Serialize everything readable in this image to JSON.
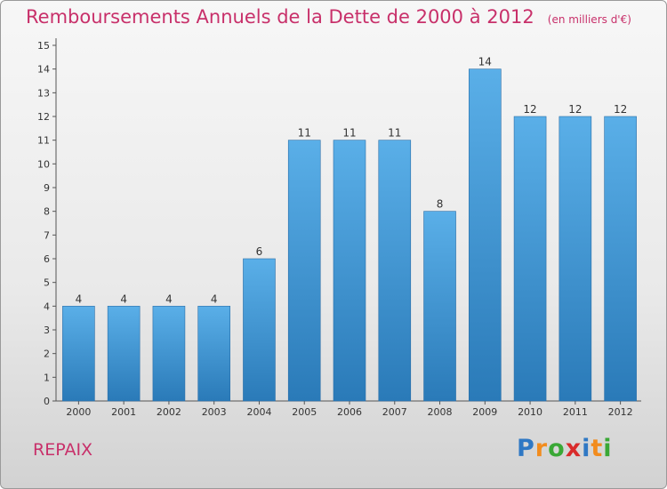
{
  "title": "Remboursements Annuels de la Dette de 2000 à 2012",
  "unit_note": "(en milliers d'€)",
  "commune": "REPAIX",
  "logo": {
    "letters": [
      "P",
      "r",
      "o",
      "x",
      "i",
      "t",
      "i"
    ],
    "colors": [
      "#2f78c4",
      "#f28c1e",
      "#3aa836",
      "#d92b2b",
      "#2f78c4",
      "#f28c1e",
      "#3aa836"
    ]
  },
  "colors": {
    "bar_top": "#5aafe8",
    "bar_bottom": "#2a7ab8",
    "accent": "#c8306a"
  },
  "chart_data": {
    "type": "bar",
    "categories": [
      "2000",
      "2001",
      "2002",
      "2003",
      "2004",
      "2005",
      "2006",
      "2007",
      "2008",
      "2009",
      "2010",
      "2011",
      "2012"
    ],
    "values": [
      4,
      4,
      4,
      4,
      6,
      11,
      11,
      11,
      8,
      14,
      12,
      12,
      12
    ],
    "value_labels": [
      "4",
      "4",
      "4",
      "4",
      "6",
      "11",
      "11",
      "11",
      "8",
      "14",
      "12",
      "12",
      "12"
    ],
    "ylim": [
      0,
      15
    ],
    "yticks": [
      "0",
      "1",
      "2",
      "3",
      "4",
      "5",
      "6",
      "7",
      "8",
      "9",
      "10",
      "11",
      "12",
      "13",
      "14",
      "15"
    ],
    "grid": false
  }
}
